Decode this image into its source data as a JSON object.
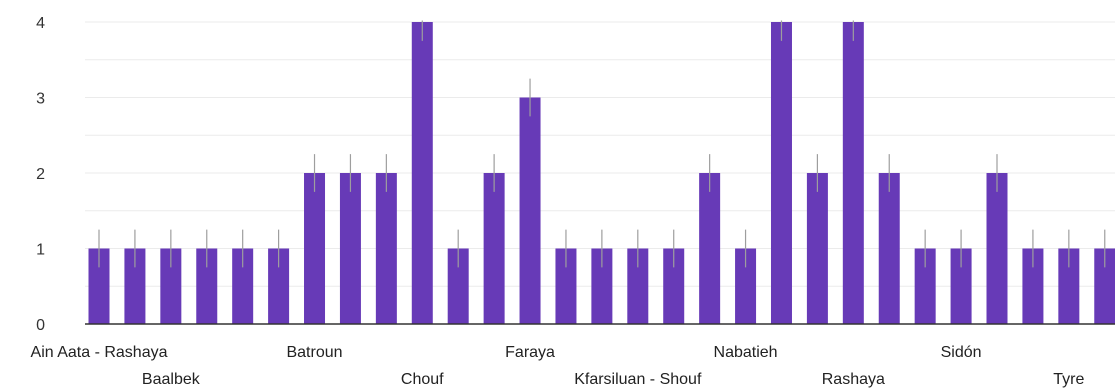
{
  "chart_data": {
    "type": "bar",
    "categories": [
      "Ain Aata - Rashaya",
      "",
      "Baalbek",
      "",
      "",
      "",
      "Batroun",
      "",
      "",
      "Chouf",
      "",
      "",
      "Faraya",
      "",
      "",
      "Kfarsiluan - Shouf",
      "",
      "",
      "Nabatieh",
      "",
      "",
      "Rashaya",
      "",
      "",
      "Sidón",
      "",
      "",
      "Tyre",
      ""
    ],
    "values": [
      1,
      1,
      1,
      1,
      1,
      1,
      2,
      2,
      2,
      4,
      1,
      2,
      3,
      1,
      1,
      1,
      1,
      2,
      1,
      4,
      2,
      4,
      2,
      1,
      1,
      2,
      1,
      1,
      1
    ],
    "error_bar": 0.25,
    "ylim": [
      0,
      4
    ],
    "yticks": [
      0,
      1,
      2,
      3,
      4
    ],
    "grid": true,
    "legend": "none",
    "title": "",
    "xlabel": "",
    "ylabel": "",
    "colors": {
      "bar": "#673AB7",
      "error_bar": "#9e9e9e",
      "grid": "#ebebeb",
      "axis": "#333333"
    }
  }
}
